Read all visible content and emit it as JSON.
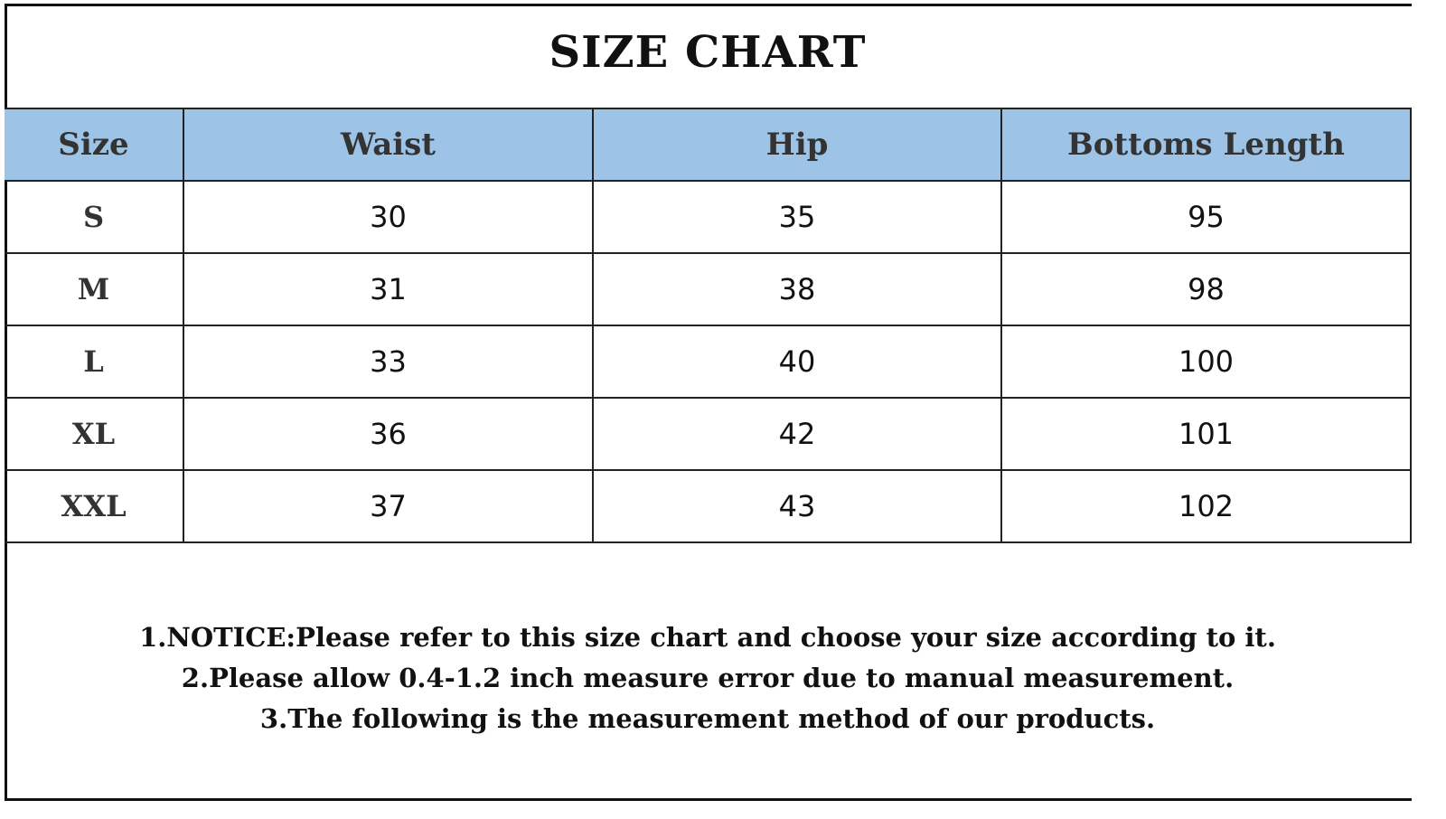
{
  "title": "SIZE CHART",
  "table": {
    "headers": [
      "Size",
      "Waist",
      "Hip",
      "Bottoms Length"
    ],
    "rows": [
      [
        "S",
        "30",
        "35",
        "95"
      ],
      [
        "M",
        "31",
        "38",
        "98"
      ],
      [
        "L",
        "33",
        "40",
        "100"
      ],
      [
        "XL",
        "36",
        "42",
        "101"
      ],
      [
        "XXL",
        "37",
        "43",
        "102"
      ]
    ],
    "header_color": "#9dc3e6"
  },
  "notes": [
    "1.NOTICE:Please refer to this size chart and choose your size according to it.",
    "2.Please allow 0.4-1.2 inch measure error due to manual measurement.",
    "3.The following is the measurement method of our products."
  ]
}
